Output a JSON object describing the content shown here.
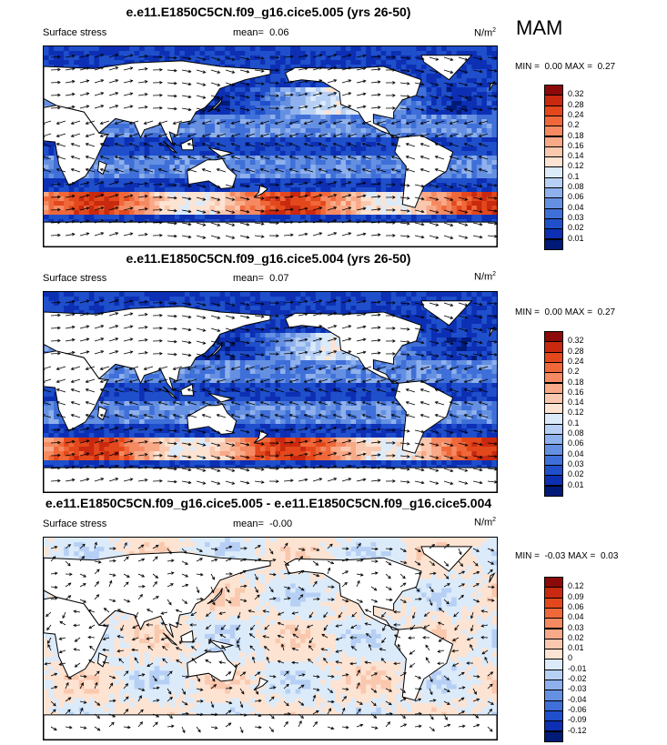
{
  "season": "MAM",
  "panels": [
    {
      "title": "e.e11.E1850C5CN.f09_g16.cice5.005 (yrs 26-50)",
      "left_label": "Surface stress",
      "mean_label": "mean=",
      "mean_value": "0.06",
      "units": "N/m",
      "units_sup": "2",
      "min_label": "MIN =",
      "min_value": "0.00",
      "max_label": "MAX =",
      "max_value": "0.27",
      "kind": "abs"
    },
    {
      "title": "e.e11.E1850C5CN.f09_g16.cice5.004 (yrs 26-50)",
      "left_label": "Surface stress",
      "mean_label": "mean=",
      "mean_value": "0.07",
      "units": "N/m",
      "units_sup": "2",
      "min_label": "MIN =",
      "min_value": "0.00",
      "max_label": "MAX =",
      "max_value": "0.27",
      "kind": "abs"
    },
    {
      "title": "e.e11.E1850C5CN.f09_g16.cice5.005 - e.e11.E1850C5CN.f09_g16.cice5.004",
      "left_label": "Surface stress",
      "mean_label": "mean=",
      "mean_value": "-0.00",
      "units": "N/m",
      "units_sup": "2",
      "min_label": "MIN =",
      "min_value": "-0.03",
      "max_label": "MAX =",
      "max_value": "0.03",
      "kind": "diff"
    }
  ],
  "colorbars": {
    "abs": {
      "labels": [
        "0.32",
        "0.28",
        "0.24",
        "0.2",
        "0.18",
        "0.16",
        "0.14",
        "0.12",
        "0.1",
        "0.08",
        "0.06",
        "0.04",
        "0.03",
        "0.02",
        "0.01"
      ],
      "colors": [
        "#8c0a0a",
        "#c8290f",
        "#e3481c",
        "#f0683a",
        "#f58a62",
        "#f8a987",
        "#fac8ae",
        "#fde3d2",
        "#dcebfa",
        "#b6cff4",
        "#8eb0ec",
        "#6590e2",
        "#3f6fd8",
        "#1f4fcb",
        "#0c2fb4",
        "#001a78"
      ]
    },
    "diff": {
      "labels": [
        "0.12",
        "0.09",
        "0.06",
        "0.04",
        "0.03",
        "0.02",
        "0.01",
        "0",
        "-0.01",
        "-0.02",
        "-0.03",
        "-0.04",
        "-0.06",
        "-0.09",
        "-0.12"
      ],
      "colors": [
        "#8c0a0a",
        "#c8290f",
        "#e3481c",
        "#f0683a",
        "#f58a62",
        "#f8a987",
        "#fac8ae",
        "#fde3d2",
        "#dcebfa",
        "#b6cff4",
        "#8eb0ec",
        "#6590e2",
        "#3f6fd8",
        "#1f4fcb",
        "#0c2fb4",
        "#001a78"
      ]
    }
  }
}
